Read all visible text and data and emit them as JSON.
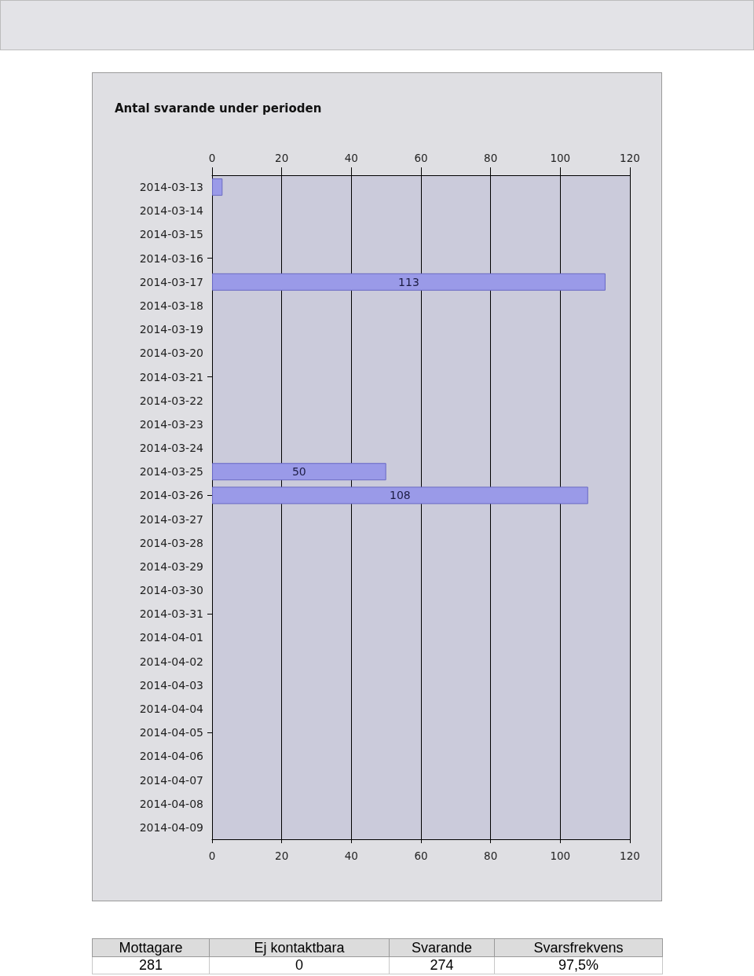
{
  "chart_data": [
    {
      "type": "bar",
      "orientation": "horizontal",
      "title": "Antal svarande under perioden",
      "categories": [
        "2014-03-13",
        "2014-03-14",
        "2014-03-15",
        "2014-03-16",
        "2014-03-17",
        "2014-03-18",
        "2014-03-19",
        "2014-03-20",
        "2014-03-21",
        "2014-03-22",
        "2014-03-23",
        "2014-03-24",
        "2014-03-25",
        "2014-03-26",
        "2014-03-27",
        "2014-03-28",
        "2014-03-29",
        "2014-03-30",
        "2014-03-31",
        "2014-04-01",
        "2014-04-02",
        "2014-04-03",
        "2014-04-04",
        "2014-04-05",
        "2014-04-06",
        "2014-04-07",
        "2014-04-08",
        "2014-04-09"
      ],
      "values": [
        3,
        null,
        null,
        null,
        113,
        null,
        null,
        null,
        null,
        null,
        null,
        null,
        50,
        108,
        null,
        null,
        null,
        null,
        null,
        null,
        null,
        null,
        null,
        null,
        null,
        null,
        null,
        null
      ],
      "value_labels": [
        null,
        null,
        null,
        null,
        "113",
        null,
        null,
        null,
        null,
        null,
        null,
        null,
        "50",
        "108",
        null,
        null,
        null,
        null,
        null,
        null,
        null,
        null,
        null,
        null,
        null,
        null,
        null,
        null
      ],
      "color": "#9a9ae8",
      "xlim": [
        0,
        120
      ],
      "xticks": [
        0,
        20,
        40,
        60,
        80,
        100,
        120
      ],
      "x2lim": [
        0,
        120
      ],
      "x2ticks": [
        0,
        20,
        40,
        60,
        80,
        100,
        120
      ],
      "grid": "x"
    },
    {
      "type": "other",
      "categories": [
        "Mottagare",
        "Ej kontaktbara",
        "Svarande",
        "Svarsfrekvens"
      ],
      "values": [
        281,
        0,
        274,
        97.5
      ],
      "value_labels": [
        "281",
        "0",
        "274",
        "97,5%"
      ]
    }
  ]
}
